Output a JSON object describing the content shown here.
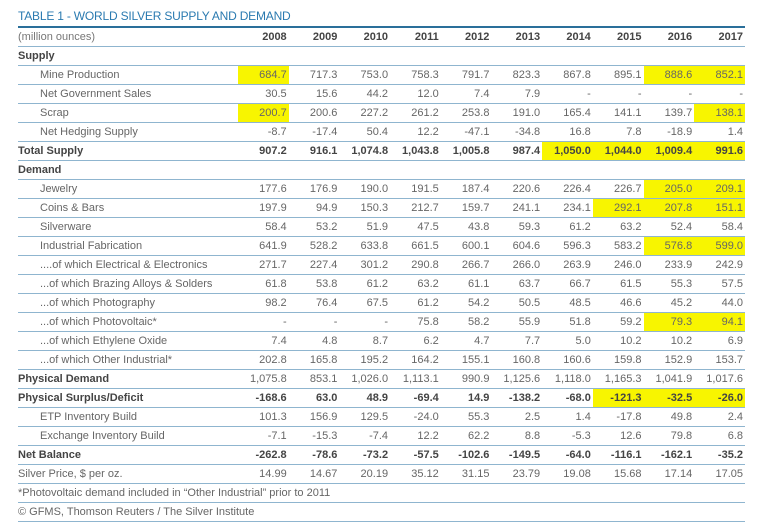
{
  "title": "TABLE 1 - WORLD SILVER SUPPLY AND DEMAND",
  "header": {
    "label": "(million ounces)",
    "years": [
      "2008",
      "2009",
      "2010",
      "2011",
      "2012",
      "2013",
      "2014",
      "2015",
      "2016",
      "2017"
    ]
  },
  "rows": [
    {
      "type": "section",
      "label": "Supply",
      "values": []
    },
    {
      "type": "sub",
      "label": "Mine Production",
      "values": [
        "684.7",
        "717.3",
        "753.0",
        "758.3",
        "791.7",
        "823.3",
        "867.8",
        "895.1",
        "888.6",
        "852.1"
      ],
      "highlighted": [
        0,
        8,
        9
      ]
    },
    {
      "type": "sub",
      "label": "Net Government Sales",
      "values": [
        "30.5",
        "15.6",
        "44.2",
        "12.0",
        "7.4",
        "7.9",
        "-",
        "-",
        "-",
        "-"
      ],
      "highlighted": []
    },
    {
      "type": "sub",
      "label": "Scrap",
      "values": [
        "200.7",
        "200.6",
        "227.2",
        "261.2",
        "253.8",
        "191.0",
        "165.4",
        "141.1",
        "139.7",
        "138.1"
      ],
      "highlighted": [
        0,
        9
      ]
    },
    {
      "type": "sub",
      "label": "Net Hedging Supply",
      "values": [
        "-8.7",
        "-17.4",
        "50.4",
        "12.2",
        "-47.1",
        "-34.8",
        "16.8",
        "7.8",
        "-18.9",
        "1.4"
      ],
      "highlighted": []
    },
    {
      "type": "bold",
      "label": "Total Supply",
      "values": [
        "907.2",
        "916.1",
        "1,074.8",
        "1,043.8",
        "1,005.8",
        "987.4",
        "1,050.0",
        "1,044.0",
        "1,009.4",
        "991.6"
      ],
      "highlighted": [
        6,
        7,
        8,
        9
      ]
    },
    {
      "type": "section",
      "label": "Demand",
      "values": []
    },
    {
      "type": "sub",
      "label": "Jewelry",
      "values": [
        "177.6",
        "176.9",
        "190.0",
        "191.5",
        "187.4",
        "220.6",
        "226.4",
        "226.7",
        "205.0",
        "209.1"
      ],
      "highlighted": [
        8,
        9
      ]
    },
    {
      "type": "sub",
      "label": "Coins & Bars",
      "values": [
        "197.9",
        "94.9",
        "150.3",
        "212.7",
        "159.7",
        "241.1",
        "234.1",
        "292.1",
        "207.8",
        "151.1"
      ],
      "highlighted": [
        7,
        8,
        9
      ]
    },
    {
      "type": "sub",
      "label": "Silverware",
      "values": [
        "58.4",
        "53.2",
        "51.9",
        "47.5",
        "43.8",
        "59.3",
        "61.2",
        "63.2",
        "52.4",
        "58.4"
      ],
      "highlighted": []
    },
    {
      "type": "sub",
      "label": "Industrial Fabrication",
      "values": [
        "641.9",
        "528.2",
        "633.8",
        "661.5",
        "600.1",
        "604.6",
        "596.3",
        "583.2",
        "576.8",
        "599.0"
      ],
      "highlighted": [
        8,
        9
      ]
    },
    {
      "type": "sub",
      "label": "....of which Electrical & Electronics",
      "values": [
        "271.7",
        "227.4",
        "301.2",
        "290.8",
        "266.7",
        "266.0",
        "263.9",
        "246.0",
        "233.9",
        "242.9"
      ],
      "highlighted": []
    },
    {
      "type": "sub",
      "label": "...of which Brazing Alloys & Solders",
      "values": [
        "61.8",
        "53.8",
        "61.2",
        "63.2",
        "61.1",
        "63.7",
        "66.7",
        "61.5",
        "55.3",
        "57.5"
      ],
      "highlighted": []
    },
    {
      "type": "sub",
      "label": "...of which Photography",
      "values": [
        "98.2",
        "76.4",
        "67.5",
        "61.2",
        "54.2",
        "50.5",
        "48.5",
        "46.6",
        "45.2",
        "44.0"
      ],
      "highlighted": []
    },
    {
      "type": "sub",
      "label": "...of which Photovoltaic*",
      "values": [
        "-",
        "-",
        "-",
        "75.8",
        "58.2",
        "55.9",
        "51.8",
        "59.2",
        "79.3",
        "94.1"
      ],
      "highlighted": [
        8,
        9
      ]
    },
    {
      "type": "sub",
      "label": "...of which Ethylene Oxide",
      "values": [
        "7.4",
        "4.8",
        "8.7",
        "6.2",
        "4.7",
        "7.7",
        "5.0",
        "10.2",
        "10.2",
        "6.9"
      ],
      "highlighted": []
    },
    {
      "type": "sub",
      "label": "...of which Other Industrial*",
      "values": [
        "202.8",
        "165.8",
        "195.2",
        "164.2",
        "155.1",
        "160.8",
        "160.6",
        "159.8",
        "152.9",
        "153.7"
      ],
      "highlighted": []
    },
    {
      "type": "boldlbl",
      "label": "Physical Demand",
      "values": [
        "1,075.8",
        "853.1",
        "1,026.0",
        "1,113.1",
        "990.9",
        "1,125.6",
        "1,118.0",
        "1,165.3",
        "1,041.9",
        "1,017.6"
      ],
      "highlighted": []
    },
    {
      "type": "bold",
      "label": "Physical Surplus/Deficit",
      "values": [
        "-168.6",
        "63.0",
        "48.9",
        "-69.4",
        "14.9",
        "-138.2",
        "-68.0",
        "-121.3",
        "-32.5",
        "-26.0"
      ],
      "highlighted": [
        7,
        8,
        9
      ]
    },
    {
      "type": "sub",
      "label": "ETP Inventory Build",
      "values": [
        "101.3",
        "156.9",
        "129.5",
        "-24.0",
        "55.3",
        "2.5",
        "1.4",
        "-17.8",
        "49.8",
        "2.4"
      ],
      "highlighted": []
    },
    {
      "type": "sub",
      "label": "Exchange Inventory Build",
      "values": [
        "-7.1",
        "-15.3",
        "-7.4",
        "12.2",
        "62.2",
        "8.8",
        "-5.3",
        "12.6",
        "79.8",
        "6.8"
      ],
      "highlighted": []
    },
    {
      "type": "bold",
      "label": "Net Balance",
      "values": [
        "-262.8",
        "-78.6",
        "-73.2",
        "-57.5",
        "-102.6",
        "-149.5",
        "-64.0",
        "-116.1",
        "-162.1",
        "-35.2"
      ],
      "highlighted": []
    },
    {
      "type": "plain",
      "label": "Silver Price, $ per oz.",
      "values": [
        "14.99",
        "14.67",
        "20.19",
        "35.12",
        "31.15",
        "23.79",
        "19.08",
        "15.68",
        "17.14",
        "17.05"
      ],
      "highlighted": []
    }
  ],
  "footnote": "*Photovoltaic demand included in “Other Industrial” prior to 2011",
  "source": "© GFMS, Thomson Reuters / The Silver Institute",
  "colors": {
    "title": "#2a7ab0",
    "rule": "#8fb5cf",
    "highlight": "#f8f500"
  }
}
